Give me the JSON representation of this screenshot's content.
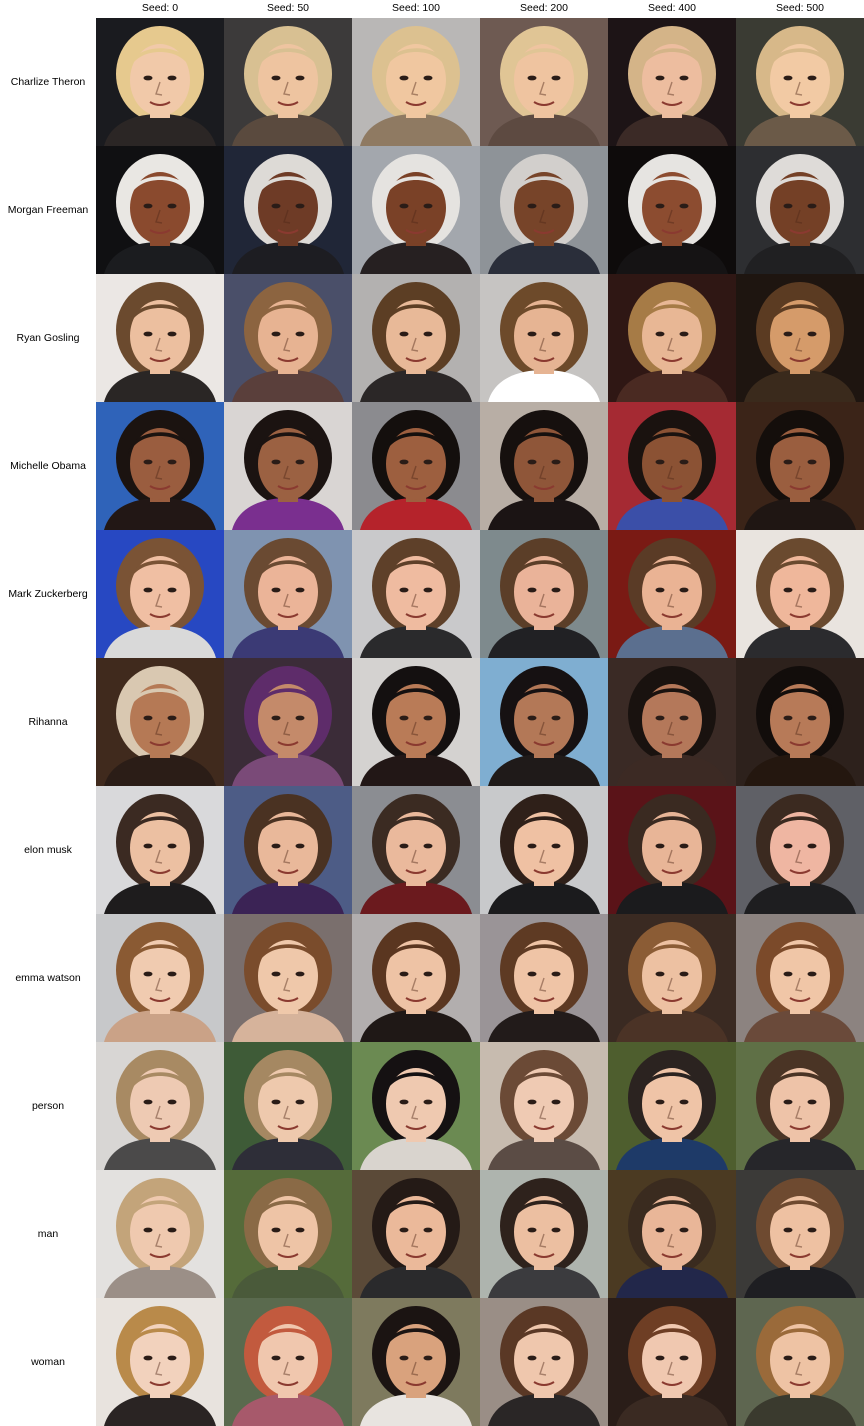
{
  "columns": [
    "Seed: 0",
    "Seed: 50",
    "Seed: 100",
    "Seed: 200",
    "Seed: 400",
    "Seed: 500"
  ],
  "rows": [
    {
      "label": "Charlize Theron",
      "images": [
        {
          "bg": "#1a1b1f",
          "hair": "#e6c98e",
          "skin": "#f1c9a9",
          "shirt": "#2b2625"
        },
        {
          "bg": "#3c3a3a",
          "hair": "#d8c092",
          "skin": "#eec4a0",
          "shirt": "#5a4a3e"
        },
        {
          "bg": "#b9b7b6",
          "hair": "#dcc190",
          "skin": "#f0c7a0",
          "shirt": "#8f7a62"
        },
        {
          "bg": "#6e5a52",
          "hair": "#e0c595",
          "skin": "#efc4a0",
          "shirt": "#5d4a41"
        },
        {
          "bg": "#1d1416",
          "hair": "#d4b488",
          "skin": "#edbd9f",
          "shirt": "#3b2a26"
        },
        {
          "bg": "#3a3b33",
          "hair": "#d7b889",
          "skin": "#f2caa4",
          "shirt": "#6b5a48"
        }
      ]
    },
    {
      "label": "Morgan Freeman",
      "images": [
        {
          "bg": "#101012",
          "hair": "#e9e7e3",
          "skin": "#8a4a2e",
          "shirt": "#1b1c1f"
        },
        {
          "bg": "#202637",
          "hair": "#dddad6",
          "skin": "#6e3b26",
          "shirt": "#1d1d22"
        },
        {
          "bg": "#a3a7ad",
          "hair": "#e5e3e0",
          "skin": "#7a4127",
          "shirt": "#262021"
        },
        {
          "bg": "#8e9398",
          "hair": "#d2cfcc",
          "skin": "#774429",
          "shirt": "#2a2e3a"
        },
        {
          "bg": "#0e0b0b",
          "hair": "#e6e4e1",
          "skin": "#8c4c30",
          "shirt": "#151314"
        },
        {
          "bg": "#2d2e31",
          "hair": "#dedbd8",
          "skin": "#744026",
          "shirt": "#202022"
        }
      ]
    },
    {
      "label": "Ryan Gosling",
      "images": [
        {
          "bg": "#ebe7e4",
          "hair": "#6b4a2e",
          "skin": "#ecbf9f",
          "shirt": "#2a2625"
        },
        {
          "bg": "#4a4f69",
          "hair": "#8c6440",
          "skin": "#e7b392",
          "shirt": "#5a3f3b"
        },
        {
          "bg": "#b3b1b0",
          "hair": "#5c3e24",
          "skin": "#e8b998",
          "shirt": "#2b2727"
        },
        {
          "bg": "#c6c4c2",
          "hair": "#6d4a2a",
          "skin": "#e6b493",
          "shirt": "#ffffff"
        },
        {
          "bg": "#2f1714",
          "hair": "#a67b46",
          "skin": "#e8b795",
          "shirt": "#4a2a22"
        },
        {
          "bg": "#1e1510",
          "hair": "#5b3b22",
          "skin": "#d59b6a",
          "shirt": "#3a2a1c"
        }
      ]
    },
    {
      "label": "Michelle Obama",
      "images": [
        {
          "bg": "#2f63b9",
          "hair": "#1b1310",
          "skin": "#9a5d3f",
          "shirt": "#221715"
        },
        {
          "bg": "#d9d5d3",
          "hair": "#1b1311",
          "skin": "#9b6142",
          "shirt": "#7a2f8f"
        },
        {
          "bg": "#8b8b8f",
          "hair": "#140f0d",
          "skin": "#9d5f3f",
          "shirt": "#b5232b"
        },
        {
          "bg": "#b8aea5",
          "hair": "#16100e",
          "skin": "#8f5639",
          "shirt": "#1b1414"
        },
        {
          "bg": "#a52a33",
          "hair": "#1a120f",
          "skin": "#8b5234",
          "shirt": "#3b4fa8"
        },
        {
          "bg": "#3b2418",
          "hair": "#140e0b",
          "skin": "#9a5e3f",
          "shirt": "#1f1613"
        }
      ]
    },
    {
      "label": "Mark Zuckerberg",
      "images": [
        {
          "bg": "#2748c2",
          "hair": "#7a5335",
          "skin": "#f0bfa3",
          "shirt": "#d9d9d9"
        },
        {
          "bg": "#7f93b0",
          "hair": "#6a4a32",
          "skin": "#ebb498",
          "shirt": "#3b3a75"
        },
        {
          "bg": "#c9c9cb",
          "hair": "#5e4029",
          "skin": "#efbba0",
          "shirt": "#2a2a2c"
        },
        {
          "bg": "#7e8a8d",
          "hair": "#5b3e28",
          "skin": "#eab399",
          "shirt": "#212124"
        },
        {
          "bg": "#7a1a14",
          "hair": "#5a3b26",
          "skin": "#eab394",
          "shirt": "#5b6f8f"
        },
        {
          "bg": "#e9e4df",
          "hair": "#6a4a2f",
          "skin": "#efb79b",
          "shirt": "#2b2b2e"
        }
      ]
    },
    {
      "label": "Rihanna",
      "images": [
        {
          "bg": "#402a1d",
          "hair": "#d9c8b1",
          "skin": "#b57955",
          "shirt": "#2b1d17"
        },
        {
          "bg": "#3b2c38",
          "hair": "#5e2c6a",
          "skin": "#c48a6a",
          "shirt": "#7a4a78"
        },
        {
          "bg": "#d4d2d0",
          "hair": "#141010",
          "skin": "#b97b57",
          "shirt": "#221716"
        },
        {
          "bg": "#7faed1",
          "hair": "#161112",
          "skin": "#b37857",
          "shirt": "#1f1a19"
        },
        {
          "bg": "#3a2a25",
          "hair": "#19120f",
          "skin": "#b4785a",
          "shirt": "#3c2a24"
        },
        {
          "bg": "#2d211c",
          "hair": "#120d0b",
          "skin": "#b77a58",
          "shirt": "#24170f"
        }
      ]
    },
    {
      "label": "elon musk",
      "images": [
        {
          "bg": "#d9d9db",
          "hair": "#3b2a22",
          "skin": "#ecc0a2",
          "shirt": "#1e1c1d"
        },
        {
          "bg": "#4d5c86",
          "hair": "#4a3222",
          "skin": "#e9b89a",
          "shirt": "#3b2355"
        },
        {
          "bg": "#8b8d92",
          "hair": "#3b2b22",
          "skin": "#eab99c",
          "shirt": "#6b1a1e"
        },
        {
          "bg": "#c8c9cb",
          "hair": "#2f2019",
          "skin": "#efc1a3",
          "shirt": "#1b1b1d"
        },
        {
          "bg": "#5a1318",
          "hair": "#3a2a21",
          "skin": "#e8b597",
          "shirt": "#1b1b1d"
        },
        {
          "bg": "#5f6066",
          "hair": "#3b2a20",
          "skin": "#efb6a2",
          "shirt": "#1e1e20"
        }
      ]
    },
    {
      "label": "emma watson",
      "images": [
        {
          "bg": "#c7c8ca",
          "hair": "#8a5a33",
          "skin": "#f0cbb0",
          "shirt": "#caa287"
        },
        {
          "bg": "#7a6f6d",
          "hair": "#7a4c2c",
          "skin": "#efc8aa",
          "shirt": "#d6b39b"
        },
        {
          "bg": "#b2aeae",
          "hair": "#5a3620",
          "skin": "#eec3a5",
          "shirt": "#1f1816"
        },
        {
          "bg": "#9a9497",
          "hair": "#5e3a23",
          "skin": "#efc4a6",
          "shirt": "#221b1a"
        },
        {
          "bg": "#3a2a22",
          "hair": "#8b5c35",
          "skin": "#edc1a2",
          "shirt": "#4b3326"
        },
        {
          "bg": "#8c8380",
          "hair": "#7b4a2a",
          "skin": "#f0c6a7",
          "shirt": "#6a4a3a"
        }
      ]
    },
    {
      "label": "person",
      "images": [
        {
          "bg": "#d8d6d4",
          "hair": "#a88a63",
          "skin": "#eecab3",
          "shirt": "#4b4a4a"
        },
        {
          "bg": "#3e5b37",
          "hair": "#a58862",
          "skin": "#eec9ad",
          "shirt": "#2e2e38"
        },
        {
          "bg": "#6b8a52",
          "hair": "#151112",
          "skin": "#efc9b0",
          "shirt": "#d9d4ce"
        },
        {
          "bg": "#c7bbaf",
          "hair": "#6b4a36",
          "skin": "#efcab3",
          "shirt": "#5b4c45"
        },
        {
          "bg": "#4e5e2e",
          "hair": "#2b2320",
          "skin": "#efc4a7",
          "shirt": "#1e3a68"
        },
        {
          "bg": "#5f7046",
          "hair": "#4a3425",
          "skin": "#eec3a8",
          "shirt": "#26262a"
        }
      ]
    },
    {
      "label": "man",
      "images": [
        {
          "bg": "#e3e1df",
          "hair": "#c3a47a",
          "skin": "#efc9af",
          "shirt": "#9b8f87"
        },
        {
          "bg": "#556b3a",
          "hair": "#8a6a46",
          "skin": "#eec4a6",
          "shirt": "#4a5a3a"
        },
        {
          "bg": "#5b4a38",
          "hair": "#241a16",
          "skin": "#ebb99a",
          "shirt": "#2a2a2c"
        },
        {
          "bg": "#aeb4ae",
          "hair": "#2e221c",
          "skin": "#ecbfa1",
          "shirt": "#3b3b3e"
        },
        {
          "bg": "#4b3a22",
          "hair": "#3a2b1f",
          "skin": "#e9b698",
          "shirt": "#22274a"
        },
        {
          "bg": "#3b3a38",
          "hair": "#6e4a30",
          "skin": "#eec1a2",
          "shirt": "#1e1e22"
        }
      ]
    },
    {
      "label": "woman",
      "images": [
        {
          "bg": "#e8e3de",
          "hair": "#b98a4a",
          "skin": "#f2d2bd",
          "shirt": "#2a2423"
        },
        {
          "bg": "#5a6a4e",
          "hair": "#c25a3e",
          "skin": "#f0c7ae",
          "shirt": "#a7596b"
        },
        {
          "bg": "#7e7a5e",
          "hair": "#1b1412",
          "skin": "#d9a27d",
          "shirt": "#e8e4e0"
        },
        {
          "bg": "#9a8e86",
          "hair": "#5a3825",
          "skin": "#efc7ad",
          "shirt": "#2a2626"
        },
        {
          "bg": "#2a1d18",
          "hair": "#6e3e24",
          "skin": "#f0c8b0",
          "shirt": "#3a2a22"
        },
        {
          "bg": "#5e6650",
          "hair": "#9a6a3a",
          "skin": "#eec3a4",
          "shirt": "#3a3a2e"
        }
      ]
    }
  ]
}
